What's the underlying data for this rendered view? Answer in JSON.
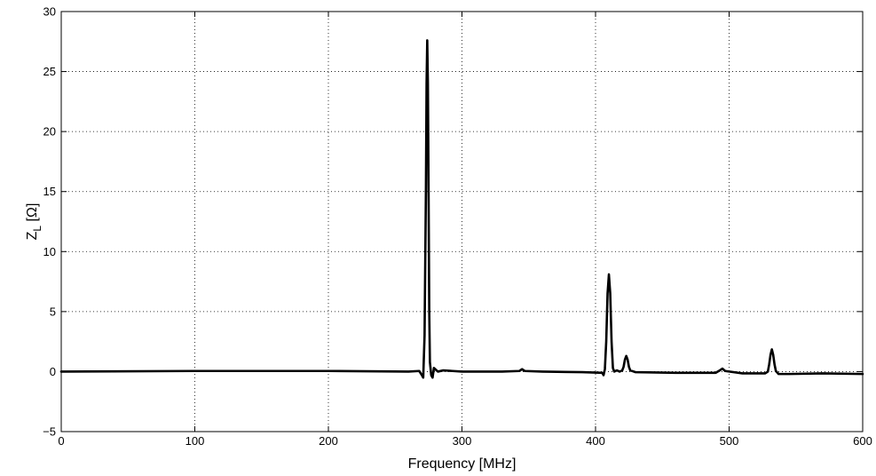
{
  "chart_data": {
    "type": "line",
    "title": "",
    "xlabel": "Frequency [MHz]",
    "ylabel_main": "Z",
    "ylabel_sub": "L",
    "ylabel_unit": " [Ω]",
    "xlim": [
      0,
      600
    ],
    "ylim": [
      -5,
      30
    ],
    "xticks": [
      0,
      100,
      200,
      300,
      400,
      500,
      600
    ],
    "yticks": [
      -5,
      0,
      5,
      10,
      15,
      20,
      25,
      30
    ],
    "xtick_labels": [
      "0",
      "100",
      "200",
      "300",
      "400",
      "500",
      "600"
    ],
    "ytick_labels": [
      "−5",
      "0",
      "5",
      "10",
      "15",
      "20",
      "25",
      "30"
    ],
    "grid": true,
    "line_color": "#000000",
    "series": [
      {
        "x": [
          0,
          100,
          200,
          260,
          268,
          270,
          271,
          272,
          273,
          273.5,
          274,
          274.5,
          275,
          275.5,
          276,
          277,
          278,
          279,
          280,
          282,
          286,
          300,
          330,
          343,
          345,
          347,
          360,
          390,
          405,
          406,
          407,
          408,
          409,
          410,
          411,
          412,
          413,
          414,
          416,
          418,
          420,
          421,
          422,
          423,
          424,
          425,
          426,
          430,
          460,
          490,
          493,
          495,
          497,
          510,
          527,
          529,
          530,
          531,
          532,
          533,
          534,
          535,
          537,
          545,
          570,
          600
        ],
        "y": [
          0,
          0.05,
          0.05,
          0.0,
          0.05,
          -0.3,
          -0.5,
          3.0,
          15.0,
          24.0,
          27.6,
          24.0,
          15.0,
          5.0,
          0.8,
          -0.3,
          -0.5,
          0.3,
          0.2,
          0.0,
          0.1,
          0.0,
          0.0,
          0.05,
          0.2,
          0.05,
          0.0,
          -0.05,
          -0.1,
          -0.3,
          0.2,
          2.5,
          6.5,
          8.1,
          6.5,
          2.5,
          0.3,
          0.0,
          0.1,
          0.0,
          0.1,
          0.4,
          1.0,
          1.3,
          1.0,
          0.4,
          0.1,
          -0.05,
          -0.1,
          -0.1,
          0.1,
          0.25,
          0.05,
          -0.15,
          -0.15,
          0.0,
          0.6,
          1.4,
          1.85,
          1.4,
          0.6,
          0.05,
          -0.2,
          -0.2,
          -0.15,
          -0.2
        ]
      }
    ]
  }
}
